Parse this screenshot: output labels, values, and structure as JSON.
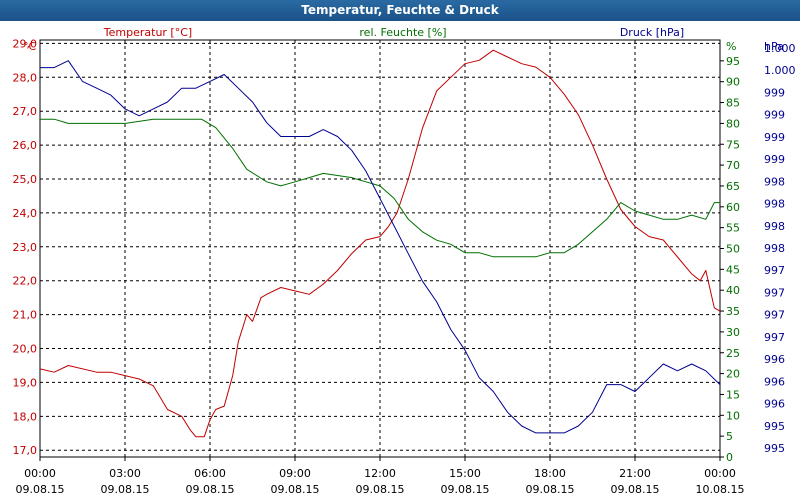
{
  "window": {
    "title": "Temperatur, Feuchte & Druck"
  },
  "chart_data": {
    "type": "line",
    "title": "Temperatur, Feuchte & Druck",
    "x": {
      "range_hours": [
        0,
        24
      ],
      "tick_hours": [
        0,
        3,
        6,
        9,
        12,
        15,
        18,
        21,
        24
      ],
      "tick_labels": [
        [
          "00:00",
          "09.08.15"
        ],
        [
          "03:00",
          "09.08.15"
        ],
        [
          "06:00",
          "09.08.15"
        ],
        [
          "09:00",
          "09.08.15"
        ],
        [
          "12:00",
          "09.08.15"
        ],
        [
          "15:00",
          "09.08.15"
        ],
        [
          "18:00",
          "09.08.15"
        ],
        [
          "21:00",
          "09.08.15"
        ],
        [
          "00:00",
          "10.08.15"
        ]
      ]
    },
    "axes": {
      "temperature": {
        "label": "Temperatur [°C]",
        "unit": "°C",
        "color": "#c00000",
        "ylim": [
          16.8,
          29.1
        ],
        "ticks": [
          "17,0",
          "18,0",
          "19,0",
          "20,0",
          "21,0",
          "22,0",
          "23,0",
          "24,0",
          "25,0",
          "26,0",
          "27,0",
          "28,0",
          "29,0"
        ]
      },
      "humidity": {
        "label": "rel. Feuchte [%]",
        "unit": "%",
        "color": "#007000",
        "ylim": [
          0,
          100
        ],
        "ticks": [
          "0",
          "5",
          "10",
          "15",
          "20",
          "25",
          "30",
          "35",
          "40",
          "45",
          "50",
          "55",
          "60",
          "65",
          "70",
          "75",
          "80",
          "85",
          "90",
          "95"
        ]
      },
      "pressure": {
        "label": "Druck [hPa]",
        "unit": "hPa",
        "color": "#000090",
        "ylim": [
          994.45,
          1000.5
        ],
        "ticks": [
          "995",
          "995",
          "996",
          "996",
          "996",
          "997",
          "997",
          "997",
          "997",
          "998",
          "998",
          "998",
          "998",
          "999",
          "999",
          "999",
          "999",
          "1.000",
          "1.000"
        ]
      }
    },
    "series": [
      {
        "name": "Temperatur",
        "axis": "temperature",
        "color": "#c00000",
        "points": [
          [
            0,
            19.4
          ],
          [
            0.5,
            19.3
          ],
          [
            1,
            19.5
          ],
          [
            2,
            19.3
          ],
          [
            2.5,
            19.3
          ],
          [
            3,
            19.2
          ],
          [
            3.5,
            19.1
          ],
          [
            4,
            18.9
          ],
          [
            4.5,
            18.2
          ],
          [
            5,
            18.0
          ],
          [
            5.3,
            17.6
          ],
          [
            5.5,
            17.4
          ],
          [
            5.8,
            17.4
          ],
          [
            6,
            17.9
          ],
          [
            6.2,
            18.2
          ],
          [
            6.5,
            18.3
          ],
          [
            6.8,
            19.2
          ],
          [
            7,
            20.2
          ],
          [
            7.3,
            21.0
          ],
          [
            7.5,
            20.8
          ],
          [
            7.8,
            21.5
          ],
          [
            8,
            21.6
          ],
          [
            8.5,
            21.8
          ],
          [
            9,
            21.7
          ],
          [
            9.5,
            21.6
          ],
          [
            10,
            21.9
          ],
          [
            10.5,
            22.3
          ],
          [
            11,
            22.8
          ],
          [
            11.5,
            23.2
          ],
          [
            12,
            23.3
          ],
          [
            12.3,
            23.6
          ],
          [
            12.6,
            24.0
          ],
          [
            13,
            25.0
          ],
          [
            13.5,
            26.5
          ],
          [
            14,
            27.6
          ],
          [
            14.5,
            28.0
          ],
          [
            15,
            28.4
          ],
          [
            15.5,
            28.5
          ],
          [
            16,
            28.8
          ],
          [
            16.5,
            28.6
          ],
          [
            17,
            28.4
          ],
          [
            17.5,
            28.3
          ],
          [
            18,
            28.0
          ],
          [
            18.5,
            27.5
          ],
          [
            19,
            26.9
          ],
          [
            19.5,
            26.0
          ],
          [
            20,
            25.0
          ],
          [
            20.5,
            24.1
          ],
          [
            21,
            23.6
          ],
          [
            21.5,
            23.3
          ],
          [
            22,
            23.2
          ],
          [
            22.5,
            22.7
          ],
          [
            23,
            22.2
          ],
          [
            23.3,
            22.0
          ],
          [
            23.5,
            22.3
          ],
          [
            23.8,
            21.2
          ],
          [
            24,
            21.1
          ]
        ]
      },
      {
        "name": "rel. Feuchte",
        "axis": "humidity",
        "color": "#007000",
        "points": [
          [
            0,
            81
          ],
          [
            0.5,
            81
          ],
          [
            1,
            80
          ],
          [
            2,
            80
          ],
          [
            3,
            80
          ],
          [
            4,
            81
          ],
          [
            5,
            81
          ],
          [
            5.7,
            81
          ],
          [
            6.2,
            79
          ],
          [
            6.8,
            74
          ],
          [
            7.3,
            69
          ],
          [
            8,
            66
          ],
          [
            8.5,
            65
          ],
          [
            9,
            66
          ],
          [
            9.5,
            67
          ],
          [
            10,
            68
          ],
          [
            11,
            67
          ],
          [
            11.5,
            66
          ],
          [
            12,
            65
          ],
          [
            12.5,
            62
          ],
          [
            13,
            57
          ],
          [
            13.5,
            54
          ],
          [
            14,
            52
          ],
          [
            14.5,
            51
          ],
          [
            15,
            49
          ],
          [
            15.5,
            49
          ],
          [
            16,
            48
          ],
          [
            16.5,
            48
          ],
          [
            17,
            48
          ],
          [
            17.5,
            48
          ],
          [
            18,
            49
          ],
          [
            18.5,
            49
          ],
          [
            19,
            51
          ],
          [
            19.5,
            54
          ],
          [
            20,
            57
          ],
          [
            20.5,
            61
          ],
          [
            21,
            59
          ],
          [
            21.5,
            58
          ],
          [
            22,
            57
          ],
          [
            22.5,
            57
          ],
          [
            23,
            58
          ],
          [
            23.5,
            57
          ],
          [
            23.8,
            61
          ],
          [
            24,
            61
          ]
        ]
      },
      {
        "name": "Druck",
        "axis": "pressure",
        "color": "#000090",
        "points": [
          [
            0,
            1000.1
          ],
          [
            0.5,
            1000.1
          ],
          [
            1,
            1000.2
          ],
          [
            1.5,
            999.9
          ],
          [
            2,
            999.8
          ],
          [
            2.5,
            999.7
          ],
          [
            3,
            999.5
          ],
          [
            3.5,
            999.4
          ],
          [
            4,
            999.5
          ],
          [
            4.5,
            999.6
          ],
          [
            5,
            999.8
          ],
          [
            5.5,
            999.8
          ],
          [
            6,
            999.9
          ],
          [
            6.5,
            1000.0
          ],
          [
            7,
            999.8
          ],
          [
            7.5,
            999.6
          ],
          [
            8,
            999.3
          ],
          [
            8.5,
            999.1
          ],
          [
            9,
            999.1
          ],
          [
            9.5,
            999.1
          ],
          [
            10,
            999.2
          ],
          [
            10.5,
            999.1
          ],
          [
            11,
            998.9
          ],
          [
            11.5,
            998.6
          ],
          [
            12,
            998.2
          ],
          [
            12.5,
            997.8
          ],
          [
            13,
            997.4
          ],
          [
            13.5,
            997.0
          ],
          [
            14,
            996.7
          ],
          [
            14.5,
            996.3
          ],
          [
            15,
            996.0
          ],
          [
            15.5,
            995.6
          ],
          [
            16,
            995.4
          ],
          [
            16.5,
            995.1
          ],
          [
            17,
            994.9
          ],
          [
            17.5,
            994.8
          ],
          [
            18,
            994.8
          ],
          [
            18.5,
            994.8
          ],
          [
            19,
            994.9
          ],
          [
            19.5,
            995.1
          ],
          [
            20,
            995.5
          ],
          [
            20.5,
            995.5
          ],
          [
            21,
            995.4
          ],
          [
            21.5,
            995.6
          ],
          [
            22,
            995.8
          ],
          [
            22.5,
            995.7
          ],
          [
            23,
            995.8
          ],
          [
            23.5,
            995.7
          ],
          [
            24,
            995.5
          ]
        ]
      }
    ]
  }
}
